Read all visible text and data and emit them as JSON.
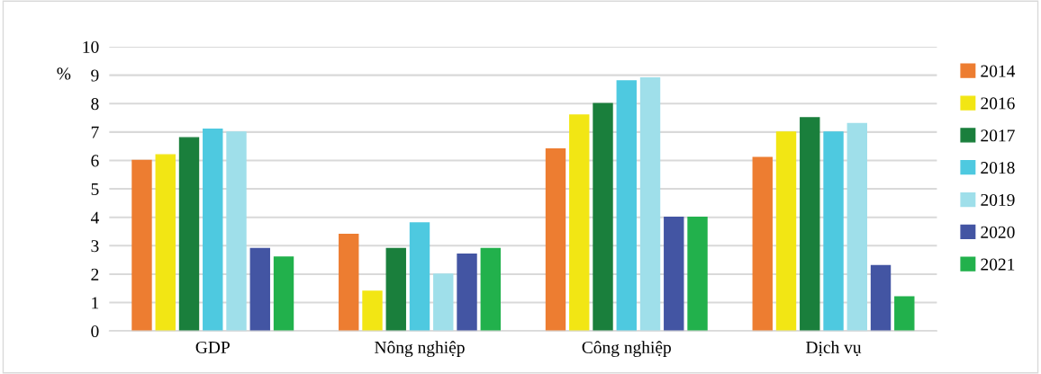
{
  "chart_data": {
    "type": "bar",
    "ylabel": "%",
    "categories": [
      "GDP",
      "Nông nghiệp",
      "Công nghiệp",
      "Dịch vụ"
    ],
    "series": [
      {
        "name": "2014",
        "color": "#ed7d31",
        "values": [
          6.0,
          3.4,
          6.4,
          6.1
        ]
      },
      {
        "name": "2016",
        "color": "#f2e614",
        "values": [
          6.2,
          1.4,
          7.6,
          7.0
        ]
      },
      {
        "name": "2017",
        "color": "#1a7f3c",
        "values": [
          6.8,
          2.9,
          8.0,
          7.5
        ]
      },
      {
        "name": "2018",
        "color": "#4ec9e0",
        "values": [
          7.1,
          3.8,
          8.8,
          7.0
        ]
      },
      {
        "name": "2019",
        "color": "#9fdfea",
        "values": [
          7.0,
          2.0,
          8.9,
          7.3
        ]
      },
      {
        "name": "2020",
        "color": "#4355a3",
        "values": [
          2.9,
          2.7,
          4.0,
          2.3
        ]
      },
      {
        "name": "2021",
        "color": "#22b14c",
        "values": [
          2.6,
          2.9,
          4.0,
          1.2
        ]
      }
    ],
    "ylim": [
      0,
      10
    ],
    "yticks": [
      0,
      1,
      2,
      3,
      4,
      5,
      6,
      7,
      8,
      9,
      10
    ],
    "grid": "y",
    "legend": "right"
  }
}
